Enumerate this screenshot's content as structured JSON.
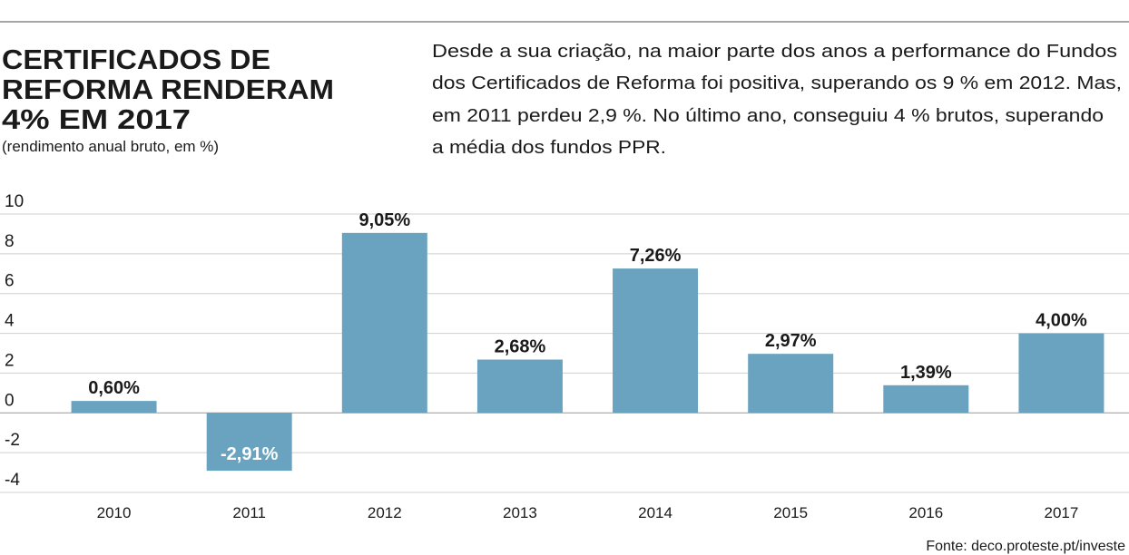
{
  "chart_data": {
    "type": "bar",
    "title": [
      "CERTIFICADOS DE",
      "REFORMA RENDERAM",
      "4% EM 2017"
    ],
    "subtitle": "(rendimento anual bruto, em %)",
    "description": [
      "Desde a sua criação, na maior parte dos anos a performance do Fundos",
      "dos Certificados de Reforma foi positiva, superando os 9 % em 2012. Mas,",
      "em 2011 perdeu 2,9 %. No último ano, conseguiu 4 % brutos, superando",
      "a média dos fundos PPR."
    ],
    "categories": [
      "2010",
      "2011",
      "2012",
      "2013",
      "2014",
      "2015",
      "2016",
      "2017"
    ],
    "values": [
      0.6,
      -2.91,
      9.05,
      2.68,
      7.26,
      2.97,
      1.39,
      4.0
    ],
    "value_labels": [
      "0,60%",
      "-2,91%",
      "9,05%",
      "2,68%",
      "7,26%",
      "2,97%",
      "1,39%",
      "4,00%"
    ],
    "color": "#6aa3c0",
    "ylim": [
      -4,
      10
    ],
    "yticks": [
      -4,
      -2,
      0,
      2,
      4,
      6,
      8,
      10
    ],
    "grid": true,
    "source": "Fonte: deco.proteste.pt/investe"
  }
}
